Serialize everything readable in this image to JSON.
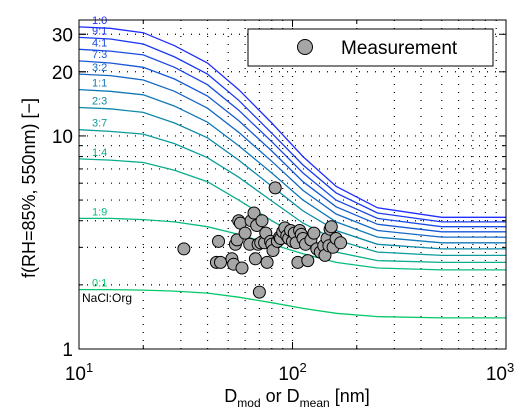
{
  "chart_data": {
    "type": "line",
    "x_scale": "log",
    "y_scale": "log",
    "xlim": [
      10,
      1000
    ],
    "ylim": [
      1,
      35
    ],
    "x_ticks": [
      {
        "base": "10",
        "exp": "1"
      },
      {
        "base": "10",
        "exp": "2"
      },
      {
        "base": "10",
        "exp": "3"
      }
    ],
    "x_tick_values": [
      10,
      100,
      1000
    ],
    "y_ticks": [
      "1",
      "10",
      "20",
      "30"
    ],
    "y_tick_values": [
      1,
      10,
      20,
      30
    ],
    "xlabel": {
      "pre": "D",
      "sub1": "mod",
      "mid": " or D",
      "sub2": "mean",
      "post": " [nm]"
    },
    "ylabel": "f(RH=85%, 550nm) [−]",
    "annotation": "NaCl:Org",
    "grid": "dotted-minor",
    "legend_position": "top-right",
    "legend": [
      {
        "name": "Measurement",
        "marker": "circle",
        "color": "#a6a6a6"
      }
    ],
    "series": [
      {
        "name": "1:0",
        "color": "#1f2dff",
        "values": [
          32.5,
          32.0,
          30.5,
          26.5,
          22.0,
          16.5,
          11.5,
          8.0,
          5.8,
          4.6,
          4.15,
          4.15
        ]
      },
      {
        "name": "9:1",
        "color": "#1a3af0",
        "values": [
          29.0,
          28.5,
          27.0,
          23.5,
          19.5,
          14.7,
          10.3,
          7.3,
          5.4,
          4.35,
          3.95,
          3.95
        ]
      },
      {
        "name": "4:1",
        "color": "#1a4ae2",
        "values": [
          25.5,
          25.0,
          24.0,
          21.0,
          17.4,
          13.2,
          9.4,
          6.7,
          5.0,
          4.1,
          3.75,
          3.75
        ]
      },
      {
        "name": "7:3",
        "color": "#1758d4",
        "values": [
          22.5,
          22.0,
          21.0,
          18.5,
          15.4,
          11.8,
          8.5,
          6.1,
          4.65,
          3.85,
          3.55,
          3.55
        ]
      },
      {
        "name": "3:2",
        "color": "#1468c6",
        "values": [
          19.5,
          19.2,
          18.3,
          16.2,
          13.5,
          10.4,
          7.6,
          5.55,
          4.3,
          3.6,
          3.35,
          3.35
        ]
      },
      {
        "name": "1:1",
        "color": "#1179b8",
        "values": [
          16.5,
          16.2,
          15.6,
          13.8,
          11.6,
          9.0,
          6.7,
          5.0,
          3.95,
          3.35,
          3.15,
          3.15
        ]
      },
      {
        "name": "2:3",
        "color": "#0e8aa8",
        "values": [
          13.6,
          13.4,
          12.9,
          11.5,
          9.8,
          7.7,
          5.8,
          4.45,
          3.6,
          3.1,
          2.95,
          2.95
        ]
      },
      {
        "name": "3:7",
        "color": "#0c9c9c",
        "values": [
          10.7,
          10.5,
          10.2,
          9.2,
          7.9,
          6.4,
          4.95,
          3.9,
          3.25,
          2.85,
          2.75,
          2.75
        ]
      },
      {
        "name": "1:4",
        "color": "#0aad8c",
        "values": [
          7.8,
          7.7,
          7.5,
          6.9,
          6.1,
          5.0,
          4.0,
          3.3,
          2.85,
          2.6,
          2.55,
          2.55
        ]
      },
      {
        "name": "1:9",
        "color": "#08bd7c",
        "values": [
          4.1,
          4.1,
          4.05,
          3.95,
          3.75,
          3.45,
          3.1,
          2.8,
          2.55,
          2.4,
          2.35,
          2.35
        ]
      },
      {
        "name": "0:1",
        "color": "#06c868",
        "values": [
          1.9,
          1.9,
          1.89,
          1.87,
          1.83,
          1.75,
          1.65,
          1.55,
          1.47,
          1.42,
          1.4,
          1.4
        ]
      }
    ],
    "x": [
      10,
      14,
      20,
      28,
      40,
      56,
      80,
      112,
      160,
      250,
      500,
      1000
    ],
    "scatter": {
      "name": "Measurement",
      "points": [
        [
          31,
          2.95
        ],
        [
          44,
          2.55
        ],
        [
          46,
          2.55
        ],
        [
          45,
          3.2
        ],
        [
          52,
          2.65
        ],
        [
          53,
          2.5
        ],
        [
          54,
          3.1
        ],
        [
          55,
          3.25
        ],
        [
          56,
          4.0
        ],
        [
          57,
          3.9
        ],
        [
          58,
          2.4
        ],
        [
          60,
          3.5
        ],
        [
          63,
          3.1
        ],
        [
          64,
          4.0
        ],
        [
          66,
          4.35
        ],
        [
          67,
          2.65
        ],
        [
          68,
          3.8
        ],
        [
          69,
          3.1
        ],
        [
          70,
          1.85
        ],
        [
          71,
          3.15
        ],
        [
          72,
          4.0
        ],
        [
          74,
          3.15
        ],
        [
          75,
          3.5
        ],
        [
          76,
          2.55
        ],
        [
          79,
          3.2
        ],
        [
          80,
          3.1
        ],
        [
          81,
          2.9
        ],
        [
          83,
          5.7
        ],
        [
          85,
          3.2
        ],
        [
          87,
          3.35
        ],
        [
          88,
          3.3
        ],
        [
          90,
          3.55
        ],
        [
          92,
          3.7
        ],
        [
          94,
          3.4
        ],
        [
          96,
          3.3
        ],
        [
          98,
          3.6
        ],
        [
          100,
          3.2
        ],
        [
          102,
          3.5
        ],
        [
          104,
          3.15
        ],
        [
          106,
          2.55
        ],
        [
          108,
          3.6
        ],
        [
          110,
          3.45
        ],
        [
          112,
          3.3
        ],
        [
          115,
          3.1
        ],
        [
          118,
          2.6
        ],
        [
          122,
          3.25
        ],
        [
          126,
          3.5
        ],
        [
          130,
          2.95
        ],
        [
          135,
          2.85
        ],
        [
          140,
          3.05
        ],
        [
          142,
          2.75
        ],
        [
          145,
          3.3
        ],
        [
          148,
          3.05
        ],
        [
          150,
          3.65
        ],
        [
          152,
          3.75
        ],
        [
          155,
          3.0
        ],
        [
          160,
          3.3
        ],
        [
          168,
          3.15
        ]
      ]
    }
  }
}
